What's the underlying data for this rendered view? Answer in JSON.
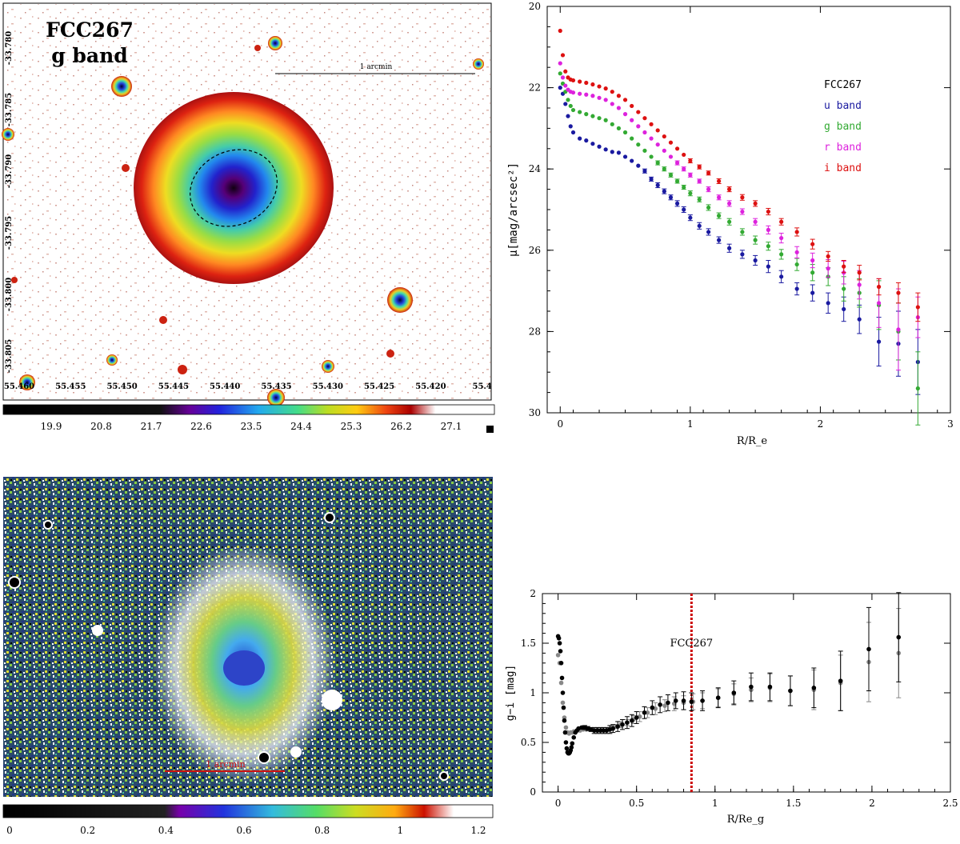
{
  "image_panel_g": {
    "title_line1": "FCC267",
    "title_line2": "g band",
    "scale_label": "1 arcmin",
    "ra_ticks": [
      "55.460",
      "55.455",
      "55.450",
      "55.445",
      "55.440",
      "55.435",
      "55.430",
      "55.425",
      "55.420",
      "55.4"
    ],
    "dec_ticks": [
      "-33.780",
      "-33.785",
      "-33.790",
      "-33.795",
      "-33.800",
      "-33.805"
    ],
    "colorbar_ticks": [
      "19.9",
      "20.8",
      "21.7",
      "22.6",
      "23.5",
      "24.4",
      "25.3",
      "26.2",
      "27.1"
    ]
  },
  "image_panel_color": {
    "scale_label": "1 arcmin",
    "colorbar_ticks": [
      "0",
      "0.2",
      "0.4",
      "0.6",
      "0.8",
      "1",
      "1.2"
    ]
  },
  "colors": {
    "u": "#1a1aa0",
    "g": "#33aa33",
    "r": "#dd22dd",
    "i": "#dd1111",
    "black": "#000000",
    "gray": "#888888",
    "re_line": "#cc0000"
  },
  "chart_data": [
    {
      "type": "scatter",
      "title": "FCC267",
      "xlabel": "R/R_e",
      "ylabel": "μ[mag/arcsec²]",
      "xlim": [
        -0.1,
        3
      ],
      "ylim": [
        30,
        20
      ],
      "xticks": [
        "0",
        "1",
        "2",
        "3"
      ],
      "yticks": [
        "20",
        "22",
        "24",
        "26",
        "28",
        "30"
      ],
      "legend_title": "FCC267",
      "series": [
        {
          "name": "u band",
          "color": "#1a1aa0",
          "x": [
            0.0,
            0.02,
            0.04,
            0.06,
            0.08,
            0.1,
            0.15,
            0.2,
            0.25,
            0.3,
            0.35,
            0.4,
            0.45,
            0.5,
            0.55,
            0.6,
            0.65,
            0.7,
            0.75,
            0.8,
            0.85,
            0.9,
            0.95,
            1.0,
            1.07,
            1.14,
            1.22,
            1.3,
            1.4,
            1.5,
            1.6,
            1.7,
            1.82,
            1.94,
            2.06,
            2.18,
            2.3,
            2.45,
            2.6,
            2.75
          ],
          "y": [
            22.0,
            22.15,
            22.4,
            22.7,
            22.95,
            23.1,
            23.25,
            23.3,
            23.38,
            23.45,
            23.52,
            23.58,
            23.6,
            23.7,
            23.8,
            23.92,
            24.05,
            24.25,
            24.4,
            24.55,
            24.7,
            24.85,
            25.0,
            25.2,
            25.4,
            25.55,
            25.75,
            25.95,
            26.1,
            26.25,
            26.4,
            26.65,
            26.95,
            27.05,
            27.3,
            27.45,
            27.7,
            28.25,
            28.3,
            28.75
          ],
          "err": [
            0.02,
            0.02,
            0.02,
            0.02,
            0.02,
            0.02,
            0.02,
            0.02,
            0.02,
            0.02,
            0.02,
            0.02,
            0.02,
            0.03,
            0.03,
            0.04,
            0.05,
            0.05,
            0.06,
            0.06,
            0.06,
            0.07,
            0.07,
            0.07,
            0.08,
            0.08,
            0.08,
            0.1,
            0.1,
            0.12,
            0.15,
            0.15,
            0.15,
            0.2,
            0.25,
            0.3,
            0.35,
            0.6,
            0.8,
            0.8
          ]
        },
        {
          "name": "g band",
          "color": "#33aa33",
          "x": [
            0.0,
            0.02,
            0.04,
            0.06,
            0.08,
            0.1,
            0.15,
            0.2,
            0.25,
            0.3,
            0.35,
            0.4,
            0.45,
            0.5,
            0.55,
            0.6,
            0.65,
            0.7,
            0.75,
            0.8,
            0.85,
            0.9,
            0.95,
            1.0,
            1.07,
            1.14,
            1.22,
            1.3,
            1.4,
            1.5,
            1.6,
            1.7,
            1.82,
            1.94,
            2.06,
            2.18,
            2.3,
            2.45,
            2.6,
            2.75
          ],
          "y": [
            21.65,
            21.9,
            22.1,
            22.3,
            22.45,
            22.55,
            22.6,
            22.65,
            22.7,
            22.75,
            22.8,
            22.9,
            23.0,
            23.1,
            23.25,
            23.4,
            23.55,
            23.7,
            23.85,
            24.0,
            24.15,
            24.3,
            24.45,
            24.6,
            24.75,
            24.95,
            25.15,
            25.3,
            25.55,
            25.75,
            25.9,
            26.1,
            26.35,
            26.55,
            26.65,
            26.95,
            27.05,
            27.35,
            28.0,
            29.4
          ],
          "err": [
            0.02,
            0.02,
            0.02,
            0.02,
            0.02,
            0.02,
            0.02,
            0.02,
            0.02,
            0.02,
            0.02,
            0.02,
            0.02,
            0.02,
            0.03,
            0.03,
            0.04,
            0.04,
            0.05,
            0.05,
            0.05,
            0.05,
            0.05,
            0.06,
            0.06,
            0.07,
            0.07,
            0.08,
            0.08,
            0.1,
            0.1,
            0.12,
            0.15,
            0.2,
            0.22,
            0.3,
            0.35,
            0.6,
            0.7,
            0.9
          ]
        },
        {
          "name": "r band",
          "color": "#dd22dd",
          "x": [
            0.0,
            0.02,
            0.04,
            0.06,
            0.08,
            0.1,
            0.15,
            0.2,
            0.25,
            0.3,
            0.35,
            0.4,
            0.45,
            0.5,
            0.55,
            0.6,
            0.65,
            0.7,
            0.75,
            0.8,
            0.85,
            0.9,
            0.95,
            1.0,
            1.07,
            1.14,
            1.22,
            1.3,
            1.4,
            1.5,
            1.6,
            1.7,
            1.82,
            1.94,
            2.06,
            2.18,
            2.3,
            2.45,
            2.6,
            2.75
          ],
          "y": [
            21.4,
            21.75,
            21.95,
            22.05,
            22.1,
            22.12,
            22.15,
            22.17,
            22.2,
            22.25,
            22.3,
            22.4,
            22.5,
            22.65,
            22.8,
            22.95,
            23.1,
            23.25,
            23.4,
            23.55,
            23.7,
            23.85,
            24.0,
            24.15,
            24.3,
            24.5,
            24.7,
            24.85,
            25.05,
            25.3,
            25.5,
            25.7,
            26.05,
            26.25,
            26.45,
            26.55,
            26.85,
            27.3,
            27.95,
            27.65
          ],
          "err": [
            0.02,
            0.02,
            0.02,
            0.02,
            0.02,
            0.02,
            0.02,
            0.02,
            0.02,
            0.02,
            0.02,
            0.02,
            0.02,
            0.02,
            0.02,
            0.03,
            0.03,
            0.03,
            0.04,
            0.04,
            0.04,
            0.05,
            0.05,
            0.05,
            0.05,
            0.06,
            0.06,
            0.07,
            0.07,
            0.08,
            0.1,
            0.12,
            0.14,
            0.18,
            0.22,
            0.28,
            0.35,
            0.6,
            1.0,
            0.5
          ]
        },
        {
          "name": "i band",
          "color": "#dd1111",
          "x": [
            0.0,
            0.02,
            0.04,
            0.06,
            0.08,
            0.1,
            0.15,
            0.2,
            0.25,
            0.3,
            0.35,
            0.4,
            0.45,
            0.5,
            0.55,
            0.6,
            0.65,
            0.7,
            0.75,
            0.8,
            0.85,
            0.9,
            0.95,
            1.0,
            1.07,
            1.14,
            1.22,
            1.3,
            1.4,
            1.5,
            1.6,
            1.7,
            1.82,
            1.94,
            2.06,
            2.18,
            2.3,
            2.45,
            2.6,
            2.75
          ],
          "y": [
            20.6,
            21.2,
            21.6,
            21.75,
            21.8,
            21.82,
            21.85,
            21.88,
            21.92,
            21.97,
            22.02,
            22.1,
            22.2,
            22.3,
            22.45,
            22.6,
            22.75,
            22.9,
            23.05,
            23.2,
            23.35,
            23.5,
            23.65,
            23.8,
            23.95,
            24.1,
            24.3,
            24.5,
            24.7,
            24.85,
            25.05,
            25.3,
            25.55,
            25.85,
            26.15,
            26.4,
            26.55,
            26.9,
            27.05,
            27.4
          ],
          "err": [
            0.02,
            0.02,
            0.02,
            0.02,
            0.02,
            0.02,
            0.02,
            0.02,
            0.02,
            0.02,
            0.02,
            0.02,
            0.02,
            0.02,
            0.02,
            0.02,
            0.03,
            0.03,
            0.03,
            0.03,
            0.04,
            0.04,
            0.04,
            0.05,
            0.05,
            0.05,
            0.06,
            0.06,
            0.07,
            0.07,
            0.08,
            0.08,
            0.1,
            0.12,
            0.12,
            0.15,
            0.18,
            0.2,
            0.25,
            0.35
          ]
        }
      ]
    },
    {
      "type": "scatter",
      "xlabel": "R/Re_g",
      "ylabel": "g−i [mag]",
      "xlim": [
        -0.1,
        2.5
      ],
      "ylim": [
        0,
        2
      ],
      "xticks": [
        "0",
        "0.5",
        "1",
        "1.5",
        "2",
        "2.5"
      ],
      "yticks": [
        "0",
        "0.5",
        "1",
        "1.5",
        "2"
      ],
      "annotation": "FCC267",
      "re_line_x": 0.85,
      "series": [
        {
          "name": "black",
          "color": "#000000",
          "x": [
            0.0,
            0.005,
            0.01,
            0.015,
            0.02,
            0.025,
            0.03,
            0.035,
            0.04,
            0.045,
            0.05,
            0.055,
            0.06,
            0.065,
            0.07,
            0.075,
            0.08,
            0.085,
            0.09,
            0.1,
            0.11,
            0.12,
            0.13,
            0.15,
            0.17,
            0.19,
            0.21,
            0.23,
            0.25,
            0.27,
            0.29,
            0.31,
            0.33,
            0.35,
            0.38,
            0.41,
            0.44,
            0.47,
            0.5,
            0.55,
            0.6,
            0.65,
            0.7,
            0.75,
            0.8,
            0.85,
            0.92,
            1.02,
            1.12,
            1.23,
            1.35,
            1.48,
            1.63,
            1.8,
            1.98,
            2.17
          ],
          "y": [
            1.57,
            1.55,
            1.5,
            1.42,
            1.3,
            1.15,
            1.0,
            0.85,
            0.72,
            0.6,
            0.5,
            0.44,
            0.4,
            0.39,
            0.39,
            0.4,
            0.42,
            0.45,
            0.49,
            0.55,
            0.6,
            0.62,
            0.64,
            0.65,
            0.65,
            0.64,
            0.63,
            0.62,
            0.62,
            0.62,
            0.62,
            0.62,
            0.63,
            0.64,
            0.66,
            0.68,
            0.7,
            0.72,
            0.75,
            0.8,
            0.85,
            0.88,
            0.9,
            0.92,
            0.92,
            0.91,
            0.92,
            0.95,
            1.0,
            1.06,
            1.06,
            1.02,
            1.05,
            1.12,
            1.44,
            1.56
          ],
          "err": [
            0,
            0,
            0,
            0,
            0,
            0,
            0,
            0,
            0,
            0,
            0,
            0,
            0,
            0,
            0,
            0,
            0,
            0,
            0,
            0,
            0,
            0,
            0,
            0,
            0.02,
            0.02,
            0.02,
            0.03,
            0.03,
            0.03,
            0.03,
            0.03,
            0.04,
            0.04,
            0.05,
            0.05,
            0.06,
            0.06,
            0.06,
            0.06,
            0.07,
            0.08,
            0.08,
            0.08,
            0.09,
            0.09,
            0.1,
            0.1,
            0.12,
            0.14,
            0.14,
            0.15,
            0.2,
            0.3,
            0.42,
            0.45
          ]
        },
        {
          "name": "gray",
          "color": "#888888",
          "x": [
            0.0,
            0.01,
            0.02,
            0.03,
            0.04,
            0.05,
            0.06,
            0.07,
            0.08,
            0.09,
            0.1,
            0.12,
            0.14,
            0.16,
            0.18,
            0.2,
            0.22,
            0.25,
            0.28,
            0.31,
            0.34,
            0.37,
            0.4,
            0.44,
            0.48,
            0.52,
            0.57,
            0.62,
            0.68,
            0.74,
            0.8,
            0.86,
            0.92,
            1.02,
            1.12,
            1.23,
            1.35,
            1.48,
            1.63,
            1.8,
            1.98,
            2.17
          ],
          "y": [
            1.38,
            1.3,
            1.1,
            0.9,
            0.75,
            0.65,
            0.6,
            0.59,
            0.6,
            0.6,
            0.61,
            0.62,
            0.62,
            0.63,
            0.63,
            0.63,
            0.63,
            0.63,
            0.63,
            0.63,
            0.64,
            0.66,
            0.68,
            0.7,
            0.73,
            0.76,
            0.8,
            0.84,
            0.87,
            0.89,
            0.9,
            0.91,
            0.92,
            0.95,
            0.99,
            1.03,
            1.05,
            1.02,
            1.03,
            1.1,
            1.31,
            1.4
          ],
          "err": [
            0,
            0,
            0,
            0,
            0,
            0,
            0,
            0,
            0,
            0,
            0,
            0,
            0,
            0,
            0,
            0,
            0,
            0,
            0,
            0,
            0.02,
            0.02,
            0.03,
            0.03,
            0.04,
            0.05,
            0.05,
            0.06,
            0.06,
            0.07,
            0.07,
            0.08,
            0.08,
            0.09,
            0.1,
            0.12,
            0.14,
            0.15,
            0.2,
            0.28,
            0.4,
            0.45
          ]
        }
      ]
    }
  ]
}
